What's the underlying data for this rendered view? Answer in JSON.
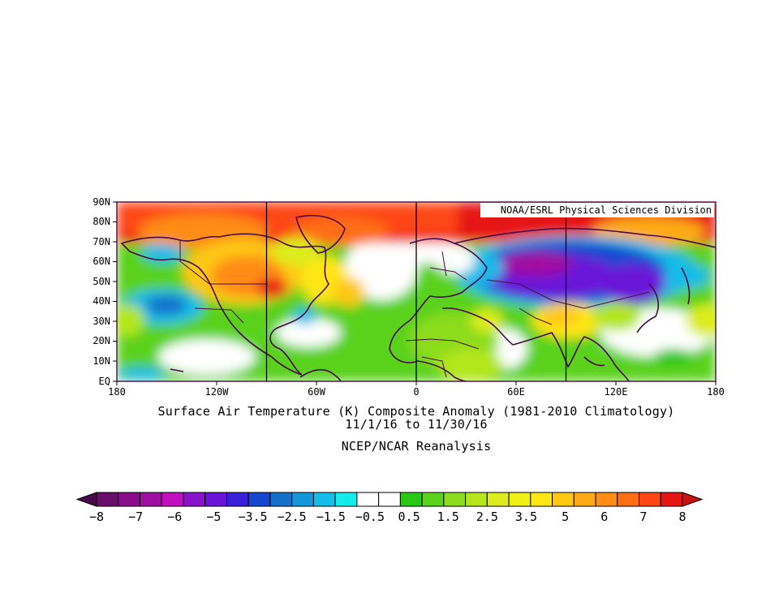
{
  "map": {
    "credit": "NOAA/ESRL Physical Sciences Division",
    "lat_labels": [
      "90N",
      "80N",
      "70N",
      "60N",
      "50N",
      "40N",
      "30N",
      "20N",
      "10N",
      "EQ"
    ],
    "lon_labels": [
      "180",
      "120W",
      "60W",
      "0",
      "60E",
      "120E",
      "180"
    ],
    "projection": "cylindrical equidistant, 180W–180E, EQ–90N"
  },
  "titles": {
    "line1": "Surface Air Temperature (K) Composite Anomaly (1981-2010 Climatology)",
    "line2": "11/1/16  to 11/30/16",
    "line3": "NCEP/NCAR Reanalysis"
  },
  "colorbar": {
    "labels": [
      "-8",
      "-7",
      "-6",
      "-5",
      "-3.5",
      "-2.5",
      "-1.5",
      "-0.5",
      "0.5",
      "1.5",
      "2.5",
      "3.5",
      "5",
      "6",
      "7",
      "8"
    ],
    "colors": [
      "#4a0a4a",
      "#6a0c6a",
      "#8a0c8a",
      "#a010a0",
      "#c010c0",
      "#8a14c8",
      "#6a14d8",
      "#3a20d8",
      "#1446d0",
      "#1470c8",
      "#1496d8",
      "#14bce8",
      "#14ecec",
      "#ffffff",
      "#ffffff",
      "#28c814",
      "#5ad21e",
      "#8cdc1e",
      "#b4e61e",
      "#dcec1e",
      "#f0f014",
      "#ffe614",
      "#ffc814",
      "#ffaa14",
      "#ff8c14",
      "#ff6e14",
      "#ff4614",
      "#e61414",
      "#c81414"
    ]
  }
}
